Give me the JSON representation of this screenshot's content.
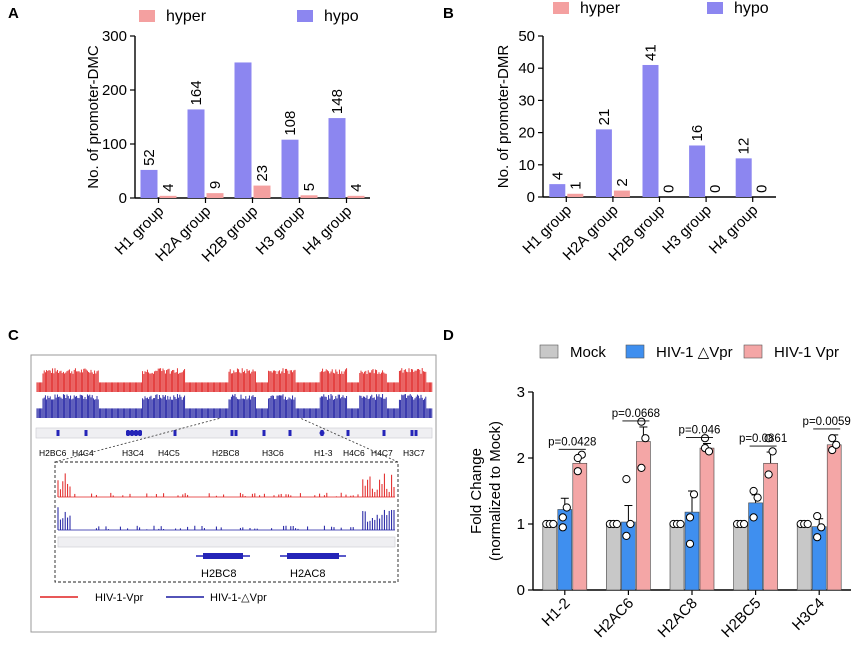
{
  "colors": {
    "hyper": "#F4A0A0",
    "hypo": "#8C86F0",
    "mock": "#C8C8C8",
    "dvpr": "#3F8FEF",
    "vpr": "#F4A6A6",
    "track_red": "#E02020",
    "track_blue": "#1A1AA0",
    "gene": "#2424B8"
  },
  "panel_a": {
    "letter": "A",
    "legend": [
      "hyper",
      "hypo"
    ]
  },
  "panel_b": {
    "letter": "B",
    "legend": [
      "hyper",
      "hypo"
    ]
  },
  "panel_c": {
    "letter": "C",
    "gene_labels_top": [
      "H2BC6",
      "H4C4",
      "H3C4",
      "H4C5",
      "H2BC8",
      "H3C6",
      "H1-3",
      "H4C6",
      "H4C7",
      "H3C7"
    ],
    "gene_labels_zoom": [
      "H2BC8",
      "H2AC8"
    ],
    "legend": [
      "HIV-1-Vpr",
      "HIV-1-△Vpr"
    ]
  },
  "panel_d": {
    "letter": "D",
    "legend": [
      "Mock",
      "HIV-1 △Vpr",
      "HIV-1 Vpr"
    ]
  },
  "chart_data": [
    {
      "type": "bar",
      "panel": "A",
      "categories": [
        "H1 group",
        "H2A group",
        "H2B group",
        "H3 group",
        "H4 group"
      ],
      "series": [
        {
          "name": "hypo",
          "values": [
            52,
            164,
            251,
            108,
            148
          ]
        },
        {
          "name": "hyper",
          "values": [
            4,
            9,
            23,
            5,
            4
          ]
        }
      ],
      "data_labels": {
        "hypo": [
          "52",
          "164",
          "",
          "108",
          "148"
        ],
        "hyper": [
          "4",
          "9",
          "23",
          "5",
          "4"
        ]
      },
      "ylabel": "No. of promoter-DMC",
      "ylim": [
        0,
        300
      ],
      "yticks": [
        0,
        100,
        200,
        300
      ],
      "legend_position": "top"
    },
    {
      "type": "bar",
      "panel": "B",
      "categories": [
        "H1 group",
        "H2A group",
        "H2B group",
        "H3 group",
        "H4 group"
      ],
      "series": [
        {
          "name": "hypo",
          "values": [
            4,
            21,
            41,
            16,
            12
          ]
        },
        {
          "name": "hyper",
          "values": [
            1,
            2,
            0,
            0,
            0
          ]
        }
      ],
      "data_labels": {
        "hypo": [
          "4",
          "21",
          "41",
          "16",
          "12"
        ],
        "hyper": [
          "1",
          "2",
          "0",
          "0",
          "0"
        ]
      },
      "ylabel": "No. of promoter-DMR",
      "ylim": [
        0,
        50
      ],
      "yticks": [
        0,
        10,
        20,
        30,
        40,
        50
      ],
      "legend_position": "top"
    },
    {
      "type": "bar",
      "panel": "D",
      "categories": [
        "H1-2",
        "H2AC6",
        "H2AC8",
        "H2BC5",
        "H3C4"
      ],
      "series": [
        {
          "name": "Mock",
          "values": [
            1.0,
            1.0,
            1.0,
            1.0,
            1.0
          ],
          "errors": [
            0.02,
            0.02,
            0.02,
            0.02,
            0.02
          ],
          "points": [
            [
              1.0,
              1.0,
              1.0
            ],
            [
              1.0,
              1.0,
              1.0
            ],
            [
              1.0,
              1.0,
              1.0
            ],
            [
              1.0,
              1.0,
              1.0
            ],
            [
              1.0,
              1.0,
              1.0
            ]
          ]
        },
        {
          "name": "HIV-1 △Vpr",
          "values": [
            1.22,
            1.03,
            1.18,
            1.32,
            0.96
          ],
          "errors": [
            0.17,
            0.25,
            0.32,
            0.12,
            0.12
          ],
          "points": [
            [
              1.1,
              1.25,
              0.95
            ],
            [
              1.68,
              1.0,
              0.82
            ],
            [
              1.1,
              1.45,
              0.7
            ],
            [
              1.1,
              1.4,
              1.5
            ],
            [
              0.8,
              0.95,
              1.12
            ]
          ]
        },
        {
          "name": "HIV-1 Vpr",
          "values": [
            1.92,
            2.25,
            2.15,
            1.92,
            2.2
          ],
          "errors": [
            0.12,
            0.22,
            0.07,
            0.17,
            0.15
          ],
          "points": [
            [
              1.8,
              2.05,
              2.0
            ],
            [
              2.55,
              2.3,
              1.85
            ],
            [
              2.15,
              2.1,
              2.3
            ],
            [
              1.75,
              2.1,
              2.3
            ],
            [
              2.12,
              2.2,
              2.3
            ]
          ]
        }
      ],
      "p_values": [
        "p=0.0428",
        "p=0.0668",
        "p=0.046",
        "p=0.0861",
        "p=0.0059"
      ],
      "ylabel": "Fold Change\n(normalized to Mock)",
      "ylim": [
        0,
        3
      ],
      "yticks": [
        0,
        1,
        2,
        3
      ],
      "legend_position": "top"
    }
  ]
}
